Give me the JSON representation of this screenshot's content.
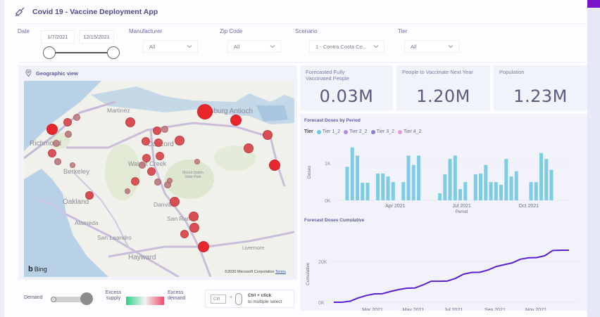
{
  "header": {
    "title": "Covid 19 - Vaccine Deployment App",
    "icon": "syringe-icon"
  },
  "filters": {
    "date": {
      "label": "Date",
      "start": "1/7/2021",
      "end": "12/15/2021"
    },
    "manufacturer": {
      "label": "Manufacturer",
      "value": "All"
    },
    "zip_code": {
      "label": "Zip Code",
      "value": "All"
    },
    "scenario": {
      "label": "Scenario",
      "value": "1 - Contra Costa Co..."
    },
    "tier": {
      "label": "Tier",
      "value": "All"
    }
  },
  "map": {
    "title": "Geographic view",
    "icon": "location-pin-icon",
    "cities": [
      {
        "name": "Martinez"
      },
      {
        "name": "Concord"
      },
      {
        "name": "Pittsburg Antioch"
      },
      {
        "name": "Richmond"
      },
      {
        "name": "Berkeley"
      },
      {
        "name": "Walnut Creek"
      },
      {
        "name": "Oakland"
      },
      {
        "name": "Alameda"
      },
      {
        "name": "Danville"
      },
      {
        "name": "San Ramon"
      },
      {
        "name": "San Leandro"
      },
      {
        "name": "Hayward"
      },
      {
        "name": "Livermore"
      },
      {
        "name": "Mount Diablo State Park"
      }
    ],
    "brand": "Bing",
    "copyright": "©2020 Microsoft Corporation",
    "terms_label": "Terms",
    "bubble_colors": {
      "demand": "#e8262c",
      "muted": "#b87a80"
    }
  },
  "legend": {
    "demand_label": "Demand",
    "excess_supply_label": "Excess supply",
    "excess_demand_label": "Excess demand",
    "ctrl_key": "Ctrl",
    "ctrl_hint_title": "Ctrl + click",
    "ctrl_hint_sub": "to multiple select",
    "plus": "+"
  },
  "kpis": [
    {
      "label": "Forecasted Fully Vaccinated People",
      "value": "0.03M"
    },
    {
      "label": "People to Vaccinate Next Year",
      "value": "1.20M"
    },
    {
      "label": "Population",
      "value": "1.23M"
    }
  ],
  "colors": {
    "accent": "#7a13c9",
    "bar": "#7ecbe6",
    "line": "#5a1fd0",
    "title": "#4a4a8a"
  },
  "chart_data": [
    {
      "type": "bar",
      "title": "Forecast Doses by Period",
      "legend_title": "Tier",
      "legend": [
        {
          "name": "Tier 1_2",
          "color": "#6cc8e0"
        },
        {
          "name": "Tier 2_2",
          "color": "#b48ae0"
        },
        {
          "name": "Tier 3_2",
          "color": "#8a7ad0"
        },
        {
          "name": "Tier 4_2",
          "color": "#e89ae0"
        }
      ],
      "xlabel": "Period",
      "ylabel": "Doses",
      "x_ticks": [
        "Apr 2021",
        "Jul 2021",
        "Oct 2021"
      ],
      "y_ticks": [
        "0K",
        "1K"
      ],
      "ylim": [
        0,
        1500
      ],
      "series": [
        {
          "name": "Tier 1_2",
          "points": [
            {
              "x": "2021-01-25",
              "y": 900
            },
            {
              "x": "2021-02-01",
              "y": 1420
            },
            {
              "x": "2021-02-08",
              "y": 1200
            },
            {
              "x": "2021-02-15",
              "y": 470
            },
            {
              "x": "2021-02-22",
              "y": 470
            },
            {
              "x": "2021-03-08",
              "y": 720
            },
            {
              "x": "2021-03-15",
              "y": 720
            },
            {
              "x": "2021-03-22",
              "y": 640
            },
            {
              "x": "2021-03-29",
              "y": 490
            },
            {
              "x": "2021-04-12",
              "y": 490
            },
            {
              "x": "2021-04-19",
              "y": 1200
            },
            {
              "x": "2021-04-26",
              "y": 950
            },
            {
              "x": "2021-05-03",
              "y": 1200
            },
            {
              "x": "2021-06-01",
              "y": 190
            },
            {
              "x": "2021-06-08",
              "y": 700
            },
            {
              "x": "2021-06-15",
              "y": 1110
            },
            {
              "x": "2021-06-22",
              "y": 1200
            },
            {
              "x": "2021-06-29",
              "y": 300
            },
            {
              "x": "2021-07-06",
              "y": 490
            },
            {
              "x": "2021-07-20",
              "y": 700
            },
            {
              "x": "2021-07-27",
              "y": 720
            },
            {
              "x": "2021-08-03",
              "y": 950
            },
            {
              "x": "2021-08-10",
              "y": 490
            },
            {
              "x": "2021-08-17",
              "y": 490
            },
            {
              "x": "2021-08-24",
              "y": 420
            },
            {
              "x": "2021-08-31",
              "y": 1110
            },
            {
              "x": "2021-09-07",
              "y": 640
            },
            {
              "x": "2021-09-14",
              "y": 780
            },
            {
              "x": "2021-10-04",
              "y": 490
            },
            {
              "x": "2021-10-11",
              "y": 490
            },
            {
              "x": "2021-10-18",
              "y": 1270
            },
            {
              "x": "2021-10-25",
              "y": 1110
            },
            {
              "x": "2021-11-01",
              "y": 820
            }
          ]
        }
      ],
      "grid": true
    },
    {
      "type": "line",
      "title": "Forecast Doses Cumulative",
      "xlabel": "Period",
      "ylabel": "Cumulative",
      "x_ticks": [
        "Mar 2021",
        "May 2021",
        "Jul 2021",
        "Sep 2021",
        "Nov 2021"
      ],
      "y_ticks": [
        "0K",
        "20K"
      ],
      "ylim": [
        0,
        30000
      ],
      "series": [
        {
          "name": "Cumulative",
          "values": [
            0,
            0,
            500,
            2100,
            3300,
            4100,
            4200,
            5300,
            6200,
            6900,
            7000,
            8500,
            10300,
            10300,
            10400,
            11700,
            13800,
            14600,
            14700,
            15800,
            17500,
            18400,
            19300,
            21100,
            21800,
            21900,
            22800,
            25400,
            25500,
            25500
          ]
        }
      ],
      "grid": true
    }
  ]
}
